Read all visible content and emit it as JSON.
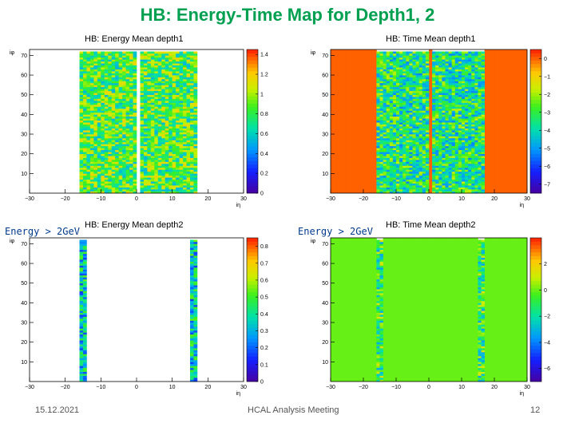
{
  "slide": {
    "title": "HB: Energy-Time Map for Depth1, 2",
    "footer_left": "15.12.2021",
    "footer_center": "HCAL Analysis Meeting",
    "footer_right": "12"
  },
  "labels": {
    "energy_cut_1": "Energy > 2GeV",
    "energy_cut_2": "Energy > 2GeV"
  },
  "chart_data": [
    {
      "type": "heatmap",
      "title": "HB: Energy Mean depth1",
      "xlabel": "iη",
      "ylabel": "iφ",
      "xlim": [
        -30,
        30
      ],
      "ylim": [
        0,
        73
      ],
      "x_ticks": [
        "−30",
        "−20",
        "−10",
        "0",
        "10",
        "20",
        "30"
      ],
      "y_ticks": [
        "10",
        "20",
        "30",
        "40",
        "50",
        "60",
        "70"
      ],
      "colorbar_ticks": [
        "0",
        "0.2",
        "0.4",
        "0.6",
        "0.8",
        "1",
        "1.2",
        "1.4"
      ],
      "zlim": [
        0,
        1.45
      ],
      "filled_ieta_ranges": [
        [
          -16,
          -1
        ],
        [
          1,
          16
        ]
      ],
      "empty_ieta": [
        0
      ],
      "typical_value": 0.85
    },
    {
      "type": "heatmap",
      "title": "HB: Time Mean depth1",
      "xlabel": "iη",
      "ylabel": "iφ",
      "xlim": [
        -30,
        30
      ],
      "ylim": [
        0,
        73
      ],
      "x_ticks": [
        "−30",
        "−20",
        "−10",
        "0",
        "10",
        "20",
        "30"
      ],
      "y_ticks": [
        "10",
        "20",
        "30",
        "40",
        "50",
        "60",
        "70"
      ],
      "colorbar_ticks": [
        "0",
        "−1",
        "−2",
        "−3",
        "−4",
        "−5",
        "−6",
        "−7"
      ],
      "zlim": [
        -7.5,
        0.5
      ],
      "filled_ieta_ranges": [
        [
          -16,
          -1
        ],
        [
          1,
          16
        ]
      ],
      "empty_ieta": [
        0
      ],
      "empty_value": 0,
      "typical_value": -3.5
    },
    {
      "type": "heatmap",
      "title": "HB: Energy Mean depth2",
      "xlabel": "iη",
      "ylabel": "iφ",
      "xlim": [
        -30,
        30
      ],
      "ylim": [
        0,
        73
      ],
      "x_ticks": [
        "−30",
        "−20",
        "−10",
        "0",
        "10",
        "20",
        "30"
      ],
      "y_ticks": [
        "10",
        "20",
        "30",
        "40",
        "50",
        "60",
        "70"
      ],
      "colorbar_ticks": [
        "0",
        "0.1",
        "0.2",
        "0.3",
        "0.4",
        "0.5",
        "0.6",
        "0.7",
        "0.8"
      ],
      "zlim": [
        0,
        0.85
      ],
      "filled_ieta_ranges": [
        [
          -16,
          -15
        ],
        [
          15,
          16
        ]
      ],
      "typical_value": 0.35
    },
    {
      "type": "heatmap",
      "title": "HB: Time Mean depth2",
      "xlabel": "iη",
      "ylabel": "iφ",
      "xlim": [
        -30,
        30
      ],
      "ylim": [
        0,
        73
      ],
      "x_ticks": [
        "−30",
        "−20",
        "−10",
        "0",
        "10",
        "20",
        "30"
      ],
      "y_ticks": [
        "10",
        "20",
        "30",
        "40",
        "50",
        "60",
        "70"
      ],
      "colorbar_ticks": [
        "−6",
        "−4",
        "−2",
        "0",
        "2"
      ],
      "zlim": [
        -7,
        4
      ],
      "filled_ieta_ranges": [
        [
          -16,
          -15
        ],
        [
          15,
          16
        ]
      ],
      "empty_value": 0,
      "typical_value": -1
    }
  ]
}
